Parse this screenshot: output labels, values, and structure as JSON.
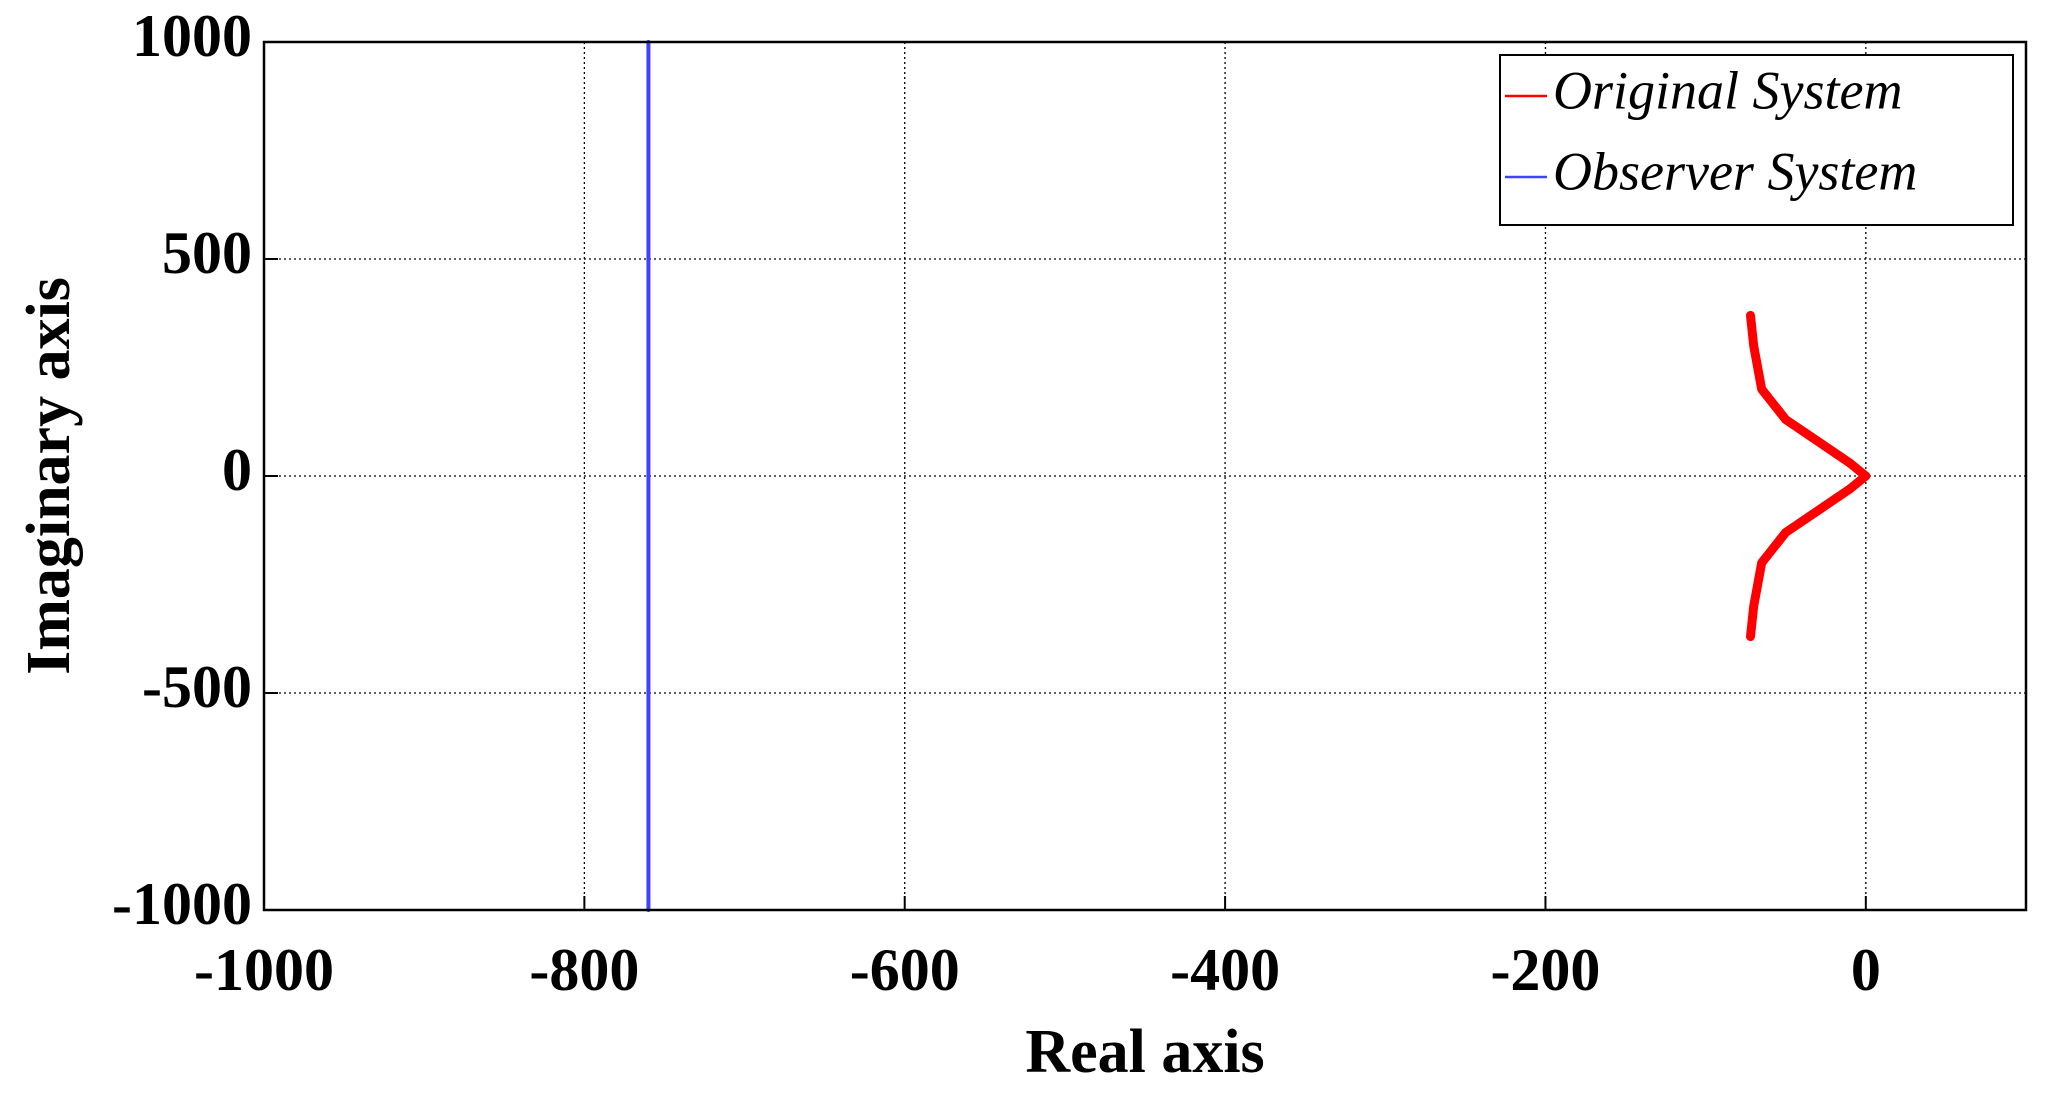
{
  "chart_data": {
    "type": "line",
    "xlabel": "Real axis",
    "ylabel": "Imaginary axis",
    "xlim": [
      -1000,
      100
    ],
    "ylim": [
      -1000,
      1000
    ],
    "xticks": [
      -1000,
      -800,
      -600,
      -400,
      -200,
      0
    ],
    "yticks": [
      -1000,
      -500,
      0,
      500,
      1000
    ],
    "grid": true,
    "legend": "upper right",
    "series": [
      {
        "name": "Original System",
        "color": "#ff0000",
        "x": [
          -72,
          -70,
          -65,
          -50,
          -30,
          -10,
          0,
          -10,
          -30,
          -50,
          -65,
          -70,
          -72
        ],
        "values": [
          370,
          300,
          200,
          130,
          80,
          30,
          0,
          -30,
          -80,
          -130,
          -200,
          -300,
          -370
        ]
      },
      {
        "name": "Observer System",
        "color": "#4040ff",
        "x": [
          -760,
          -760
        ],
        "values": [
          -1000,
          1000
        ]
      }
    ]
  }
}
